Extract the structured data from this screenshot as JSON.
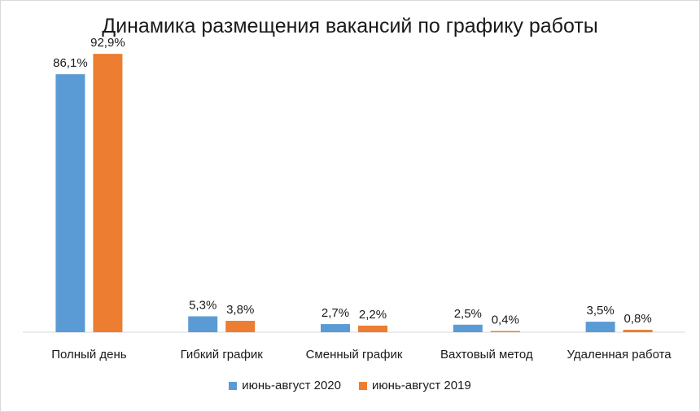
{
  "chart_data": {
    "type": "bar",
    "title": "Динамика размещения вакансий по графику работы",
    "categories": [
      "Полный день",
      "Гибкий график",
      "Сменный график",
      "Вахтовый метод",
      "Удаленная работа"
    ],
    "series": [
      {
        "name": "июнь-август 2020",
        "color": "#5b9bd5",
        "values": [
          86.1,
          5.3,
          2.7,
          2.5,
          3.5
        ],
        "labels": [
          "86,1%",
          "5,3%",
          "2,7%",
          "2,5%",
          "3,5%"
        ]
      },
      {
        "name": "июнь-август 2019",
        "color": "#ed7d31",
        "values": [
          92.9,
          3.8,
          2.2,
          0.4,
          0.8
        ],
        "labels": [
          "92,9%",
          "3,8%",
          "2,2%",
          "0,4%",
          "0,8%"
        ]
      }
    ],
    "ylim": [
      0,
      100
    ],
    "grid": false,
    "legend_position": "bottom"
  }
}
